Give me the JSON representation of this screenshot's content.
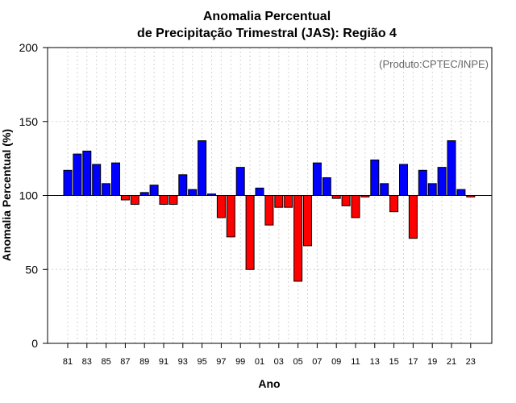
{
  "chart_data": {
    "type": "bar",
    "title_lines": [
      "Anomalia Percentual",
      "de Precipitação Trimestral (JAS): Região 4"
    ],
    "xlabel": "Ano",
    "ylabel": "Anomalia Percentual (%)",
    "source_note": "(Produto:CPTEC/INPE)",
    "ylim": [
      0,
      200
    ],
    "yticks": [
      0,
      50,
      100,
      150,
      200
    ],
    "baseline": 100,
    "grid": true,
    "colors": {
      "above": "#0000ff",
      "below": "#ff0000",
      "outline": "#000000",
      "grid": "#d3d3d3"
    },
    "categories": [
      "81",
      "82",
      "83",
      "84",
      "85",
      "86",
      "87",
      "88",
      "89",
      "90",
      "91",
      "92",
      "93",
      "94",
      "95",
      "96",
      "97",
      "98",
      "99",
      "00",
      "01",
      "02",
      "03",
      "04",
      "05",
      "06",
      "07",
      "08",
      "09",
      "10",
      "11",
      "12",
      "13",
      "14",
      "15",
      "16",
      "17",
      "18",
      "19",
      "20",
      "21",
      "22",
      "23"
    ],
    "xtick_labels": [
      "81",
      "83",
      "85",
      "87",
      "89",
      "91",
      "93",
      "95",
      "97",
      "99",
      "01",
      "03",
      "05",
      "07",
      "09",
      "11",
      "13",
      "15",
      "17",
      "19",
      "21",
      "23"
    ],
    "values": [
      117,
      128,
      130,
      121,
      108,
      122,
      97,
      94,
      102,
      107,
      94,
      94,
      114,
      104,
      137,
      101,
      85,
      72,
      119,
      50,
      105,
      80,
      92,
      92,
      42,
      66,
      122,
      112,
      98,
      93,
      85,
      99,
      124,
      108,
      89,
      121,
      71,
      117,
      108,
      119,
      137,
      104,
      99
    ]
  }
}
